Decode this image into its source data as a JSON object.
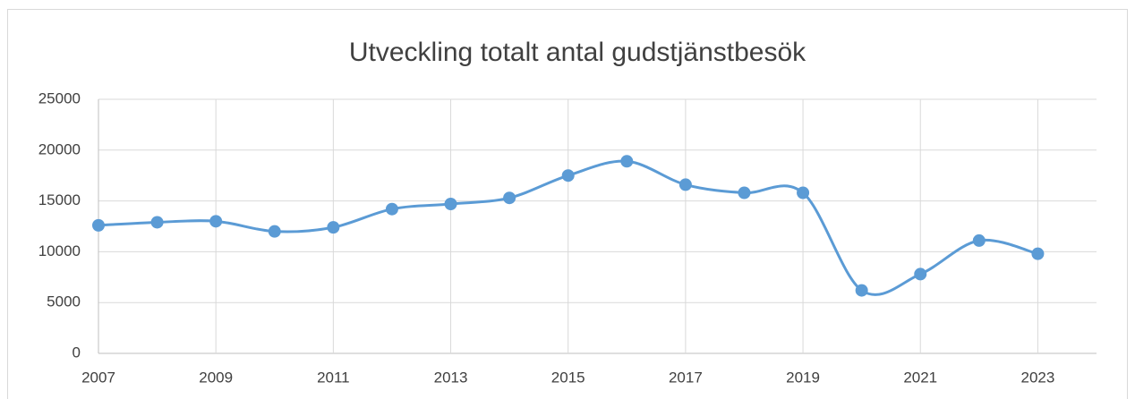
{
  "chart_data": {
    "type": "line",
    "title": "Utveckling totalt antal gudstjänstbesök",
    "x": [
      2007,
      2008,
      2009,
      2010,
      2011,
      2012,
      2013,
      2014,
      2015,
      2016,
      2017,
      2018,
      2019,
      2020,
      2021,
      2022,
      2023
    ],
    "values": [
      12600,
      12900,
      13000,
      12000,
      12400,
      14200,
      14700,
      15300,
      17500,
      18900,
      16600,
      15800,
      15800,
      6200,
      7800,
      11100,
      9800
    ],
    "color": "#5b9bd5",
    "smooth": true,
    "xlim": [
      2007,
      2024
    ],
    "xticks": [
      2007,
      2009,
      2011,
      2013,
      2015,
      2017,
      2019,
      2021,
      2023
    ],
    "ylim": [
      0,
      25000
    ],
    "yticks": [
      0,
      5000,
      10000,
      15000,
      20000,
      25000
    ],
    "grid": true
  }
}
